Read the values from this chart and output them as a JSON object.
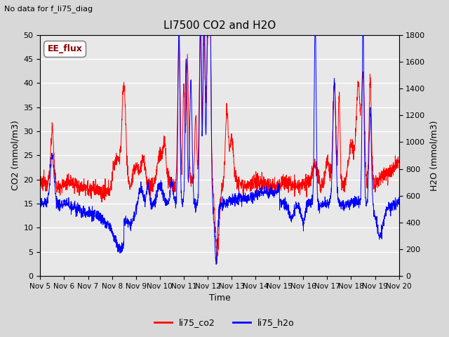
{
  "title": "LI7500 CO2 and H2O",
  "subtitle": "No data for f_li75_diag",
  "xlabel": "Time",
  "ylabel_left": "CO2 (mmol/m3)",
  "ylabel_right": "H2O (mmol/m3)",
  "xlim": [
    0,
    15
  ],
  "ylim_left": [
    0,
    50
  ],
  "ylim_right": [
    0,
    1800
  ],
  "yticks_left": [
    0,
    5,
    10,
    15,
    20,
    25,
    30,
    35,
    40,
    45,
    50
  ],
  "yticks_right": [
    0,
    200,
    400,
    600,
    800,
    1000,
    1200,
    1400,
    1600,
    1800
  ],
  "xtick_labels": [
    "Nov 5",
    "Nov 6",
    "Nov 7",
    "Nov 8",
    "Nov 9",
    "Nov 10",
    "Nov 11",
    "Nov 12",
    "Nov 13",
    "Nov 14",
    "Nov 15",
    "Nov 16",
    "Nov 17",
    "Nov 18",
    "Nov 19",
    "Nov 20"
  ],
  "legend_entries": [
    "li75_co2",
    "li75_h2o"
  ],
  "legend_colors": [
    "red",
    "blue"
  ],
  "annotation_box": "EE_flux",
  "background_color": "#d8d8d8",
  "plot_bg_color": "#e8e8e8",
  "grid_color": "#ffffff",
  "co2_color": "red",
  "h2o_color": "blue",
  "title_fontsize": 11,
  "axis_fontsize": 9,
  "tick_fontsize": 8,
  "seed": 12345
}
